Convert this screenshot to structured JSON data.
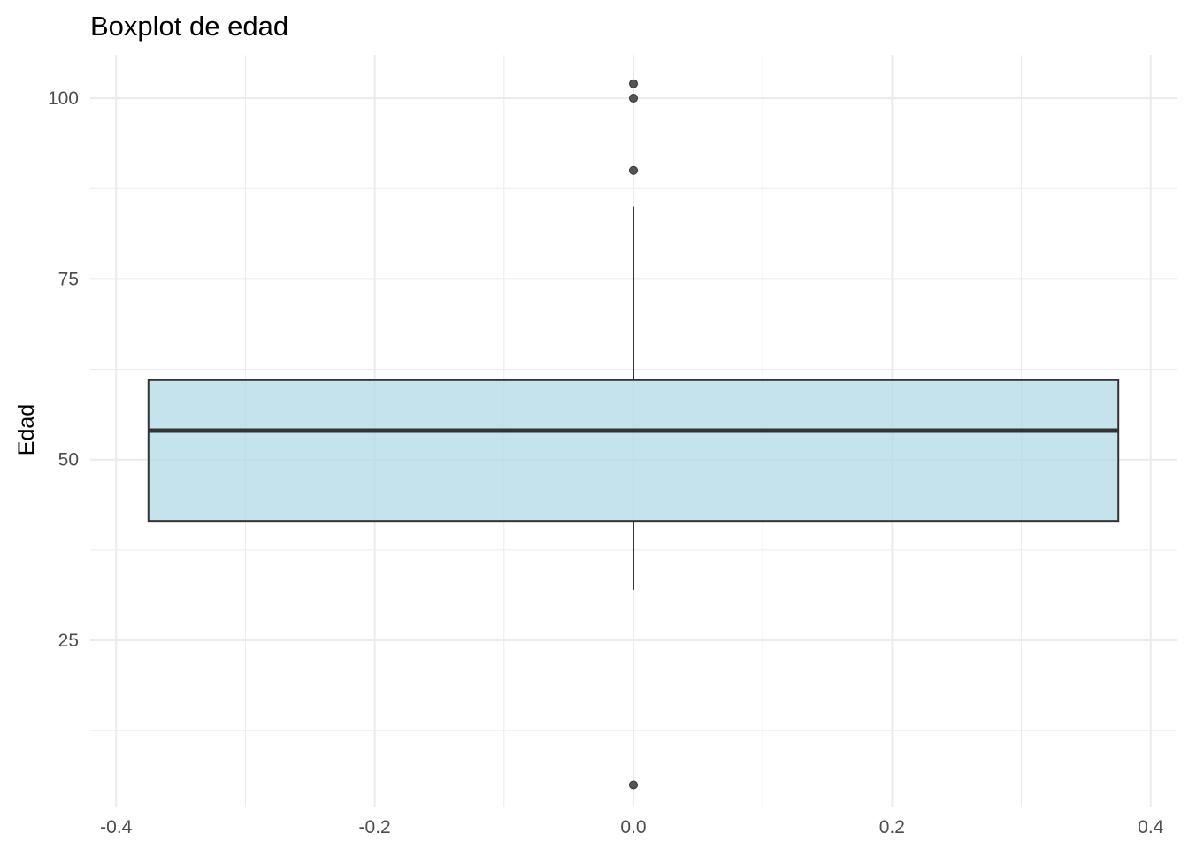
{
  "chart_data": {
    "type": "boxplot",
    "title": "Boxplot de edad",
    "xlabel": "",
    "ylabel": "Edad",
    "xlim": [
      -0.42,
      0.42
    ],
    "ylim": [
      2,
      106
    ],
    "x_ticks": [
      -0.4,
      -0.2,
      0.0,
      0.2,
      0.4
    ],
    "x_tick_labels": [
      "-0.4",
      "-0.2",
      "0.0",
      "0.2",
      "0.4"
    ],
    "y_ticks": [
      25,
      50,
      75,
      100
    ],
    "y_tick_labels": [
      "25",
      "50",
      "75",
      "100"
    ],
    "grid": true,
    "box": {
      "x_center": 0.0,
      "x_min": -0.375,
      "x_max": 0.375,
      "lower_whisker": 32,
      "q1": 41.5,
      "median": 54,
      "q3": 61,
      "upper_whisker": 85,
      "outliers": [
        5,
        90,
        100,
        102
      ],
      "fill_color": "#add8e6",
      "line_color": "#333333"
    }
  }
}
